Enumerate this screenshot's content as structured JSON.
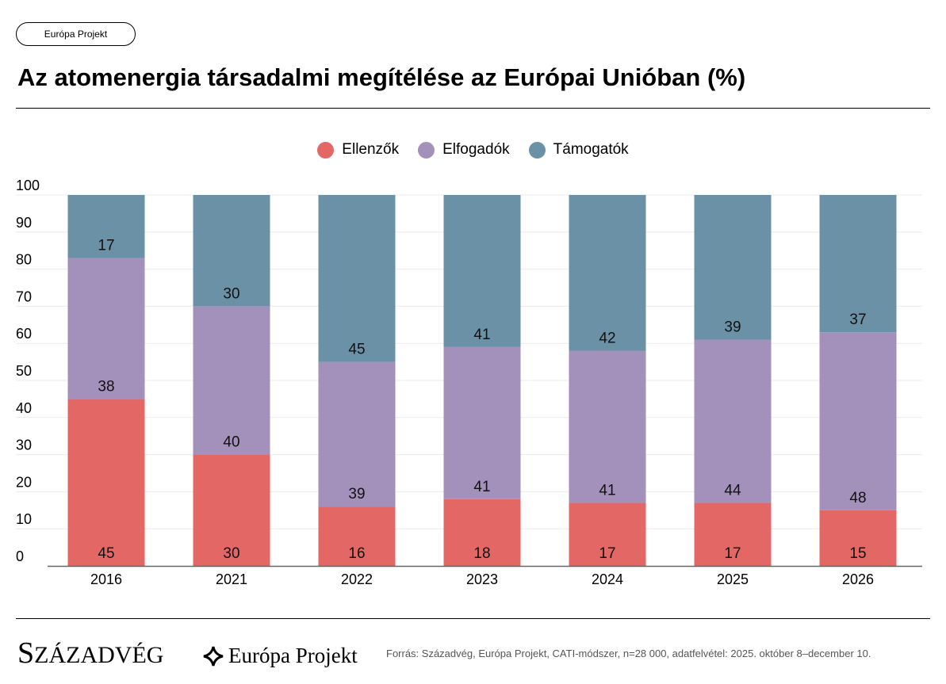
{
  "header": {
    "tag": "Európa Projekt",
    "title": "Az atomenergia társadalmi megítélése az Európai Unióban (%)"
  },
  "chart_data": {
    "type": "bar",
    "stacked": true,
    "categories": [
      "2016",
      "2021",
      "2022",
      "2023",
      "2024",
      "2025",
      "2026"
    ],
    "series": [
      {
        "name": "Ellenzők",
        "color": "#E36765",
        "values": [
          45,
          30,
          16,
          18,
          17,
          17,
          15
        ]
      },
      {
        "name": "Elfogadók",
        "color": "#A391BC",
        "values": [
          38,
          40,
          39,
          41,
          41,
          44,
          48
        ]
      },
      {
        "name": "Támogatók",
        "color": "#6A91A5",
        "values": [
          17,
          30,
          45,
          41,
          42,
          39,
          37
        ]
      }
    ],
    "ylim": [
      0,
      100
    ],
    "yticks": [
      0,
      10,
      20,
      30,
      40,
      50,
      60,
      70,
      80,
      90,
      100
    ],
    "grid": true,
    "legend": "top-center",
    "data_labels": true
  },
  "footer": {
    "logo_szazadveg": "Századvég",
    "logo_europa": "Európa Projekt",
    "source": "Forrás: Századvég, Európa Projekt, CATI-módszer, n=28 000, adatfelvétel: 2025. október 8–december 10."
  }
}
